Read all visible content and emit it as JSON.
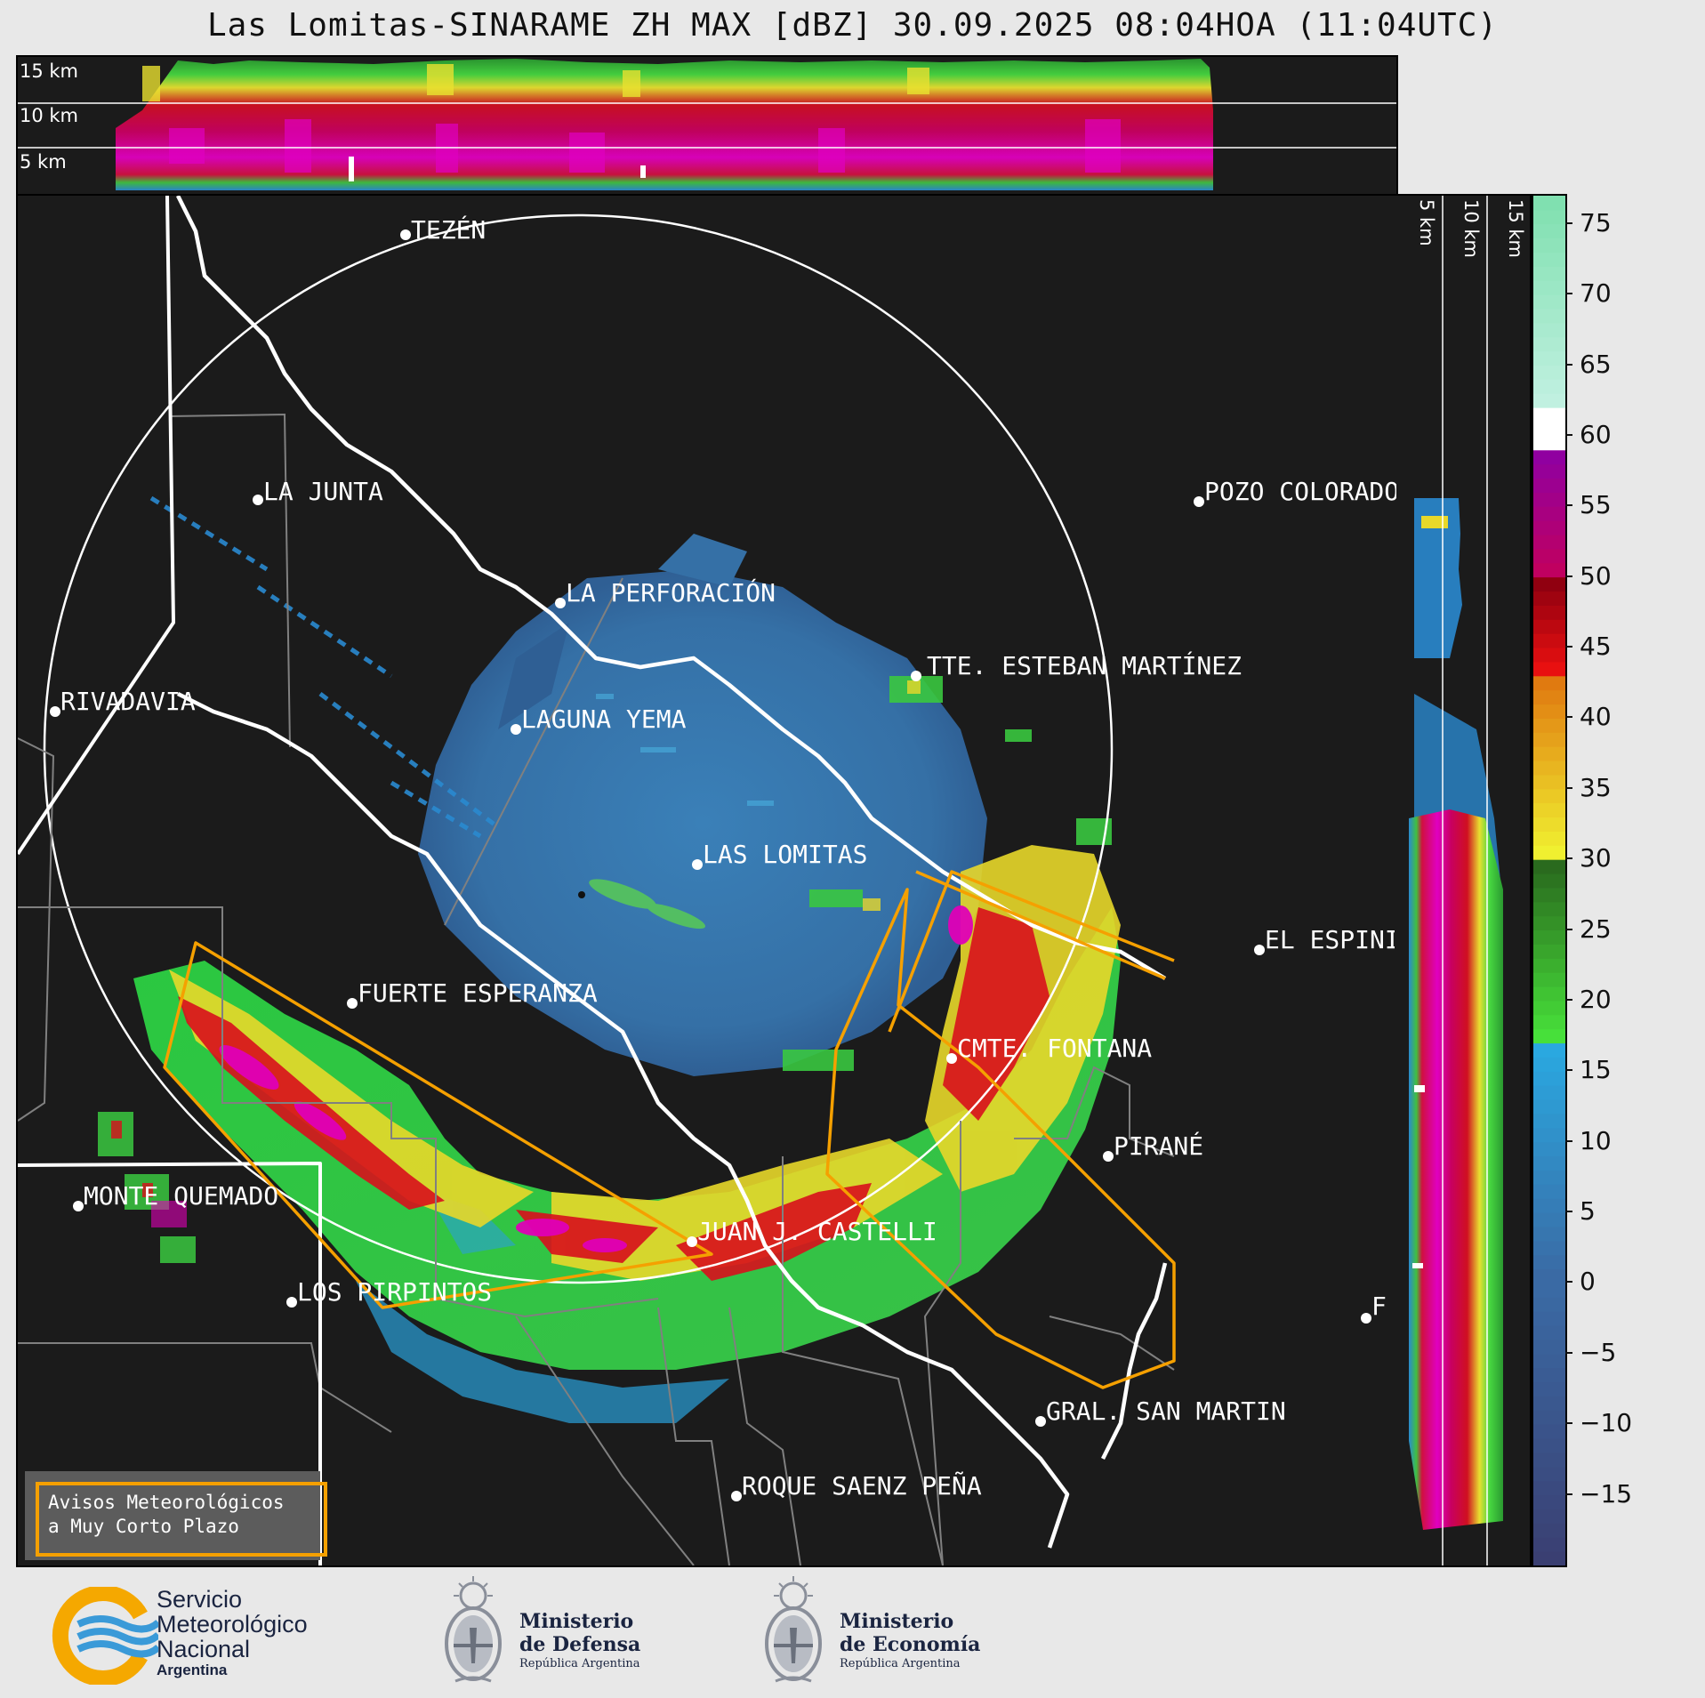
{
  "title": "Las Lomitas-SINARAME ZH MAX [dBZ] 30.09.2025 08:04HOA (11:04UTC)",
  "top_panel": {
    "altitude_labels": [
      "15 km",
      "10 km",
      "5 km"
    ]
  },
  "side_panel": {
    "altitude_labels": [
      "5 km",
      "10 km",
      "15 km"
    ]
  },
  "colorbar": {
    "unit": "dBZ",
    "ticks": [
      "75",
      "70",
      "65",
      "60",
      "55",
      "50",
      "45",
      "40",
      "35",
      "30",
      "25",
      "20",
      "15",
      "10",
      "5",
      "0",
      "−5",
      "−10",
      "−15"
    ],
    "range": [
      -20,
      77
    ],
    "color_stops": [
      {
        "from": -20,
        "to": 0,
        "color_low": "#3a3f72",
        "color_high": "#3a6aa4"
      },
      {
        "from": 0,
        "to": 17,
        "color_low": "#3a6aa4",
        "color_high": "#2aa8e0"
      },
      {
        "from": 17,
        "to": 30,
        "color_low": "#47e03a",
        "color_high": "#2a6a1e"
      },
      {
        "from": 30,
        "to": 43,
        "color_low": "#f0f030",
        "color_high": "#e07a10"
      },
      {
        "from": 43,
        "to": 50,
        "color_low": "#e81010",
        "color_high": "#900010"
      },
      {
        "from": 50,
        "to": 59,
        "color_low": "#c00060",
        "color_high": "#9000a0"
      },
      {
        "from": 59,
        "to": 62,
        "color_low": "#ffffff",
        "color_high": "#ffffff"
      },
      {
        "from": 62,
        "to": 77,
        "color_low": "#c0f0e0",
        "color_high": "#80e0b0"
      }
    ]
  },
  "map": {
    "radar_site": "LAS LOMITAS",
    "localities": [
      {
        "name": "TEZÉN"
      },
      {
        "name": "LA JUNTA"
      },
      {
        "name": "POZO COLORADO"
      },
      {
        "name": "LA PERFORACIÓN"
      },
      {
        "name": "TTE. ESTEBAN MARTÍNEZ"
      },
      {
        "name": "RIVADAVIA"
      },
      {
        "name": "LAGUNA YEMA"
      },
      {
        "name": "LAS LOMITAS"
      },
      {
        "name": "EL ESPINILLO"
      },
      {
        "name": "FUERTE ESPERANZA"
      },
      {
        "name": "CMTE. FONTANA"
      },
      {
        "name": "PIRANÉ"
      },
      {
        "name": "MONTE QUEMADO"
      },
      {
        "name": "JUAN J. CASTELLI"
      },
      {
        "name": "LOS PIRPINTOS"
      },
      {
        "name": "GRAL. SAN MARTIN"
      },
      {
        "name": "ROQUE SAENZ PEÑA"
      },
      {
        "name": "F"
      }
    ],
    "colors": {
      "background": "#1b1b1b",
      "range_ring": "#ffffff",
      "rivers": "#ffffff",
      "province_borders": "#ffffff",
      "department_borders": "#808080",
      "warning_polygons": "#f5a000"
    }
  },
  "legend_box": {
    "line1": "Avisos Meteorológicos",
    "line2": "a Muy Corto Plazo",
    "border_color": "#f5a000"
  },
  "logos": {
    "smn": {
      "line1": "Servicio",
      "line2": "Meteorológico",
      "line3": "Nacional",
      "line4": "Argentina",
      "icon": "smn-logo-icon"
    },
    "defensa": {
      "line1": "Ministerio",
      "line2": "de Defensa",
      "line3": "República Argentina",
      "icon": "coat-of-arms-icon"
    },
    "economia": {
      "line1": "Ministerio",
      "line2": "de Economía",
      "line3": "República Argentina",
      "icon": "coat-of-arms-icon"
    }
  }
}
